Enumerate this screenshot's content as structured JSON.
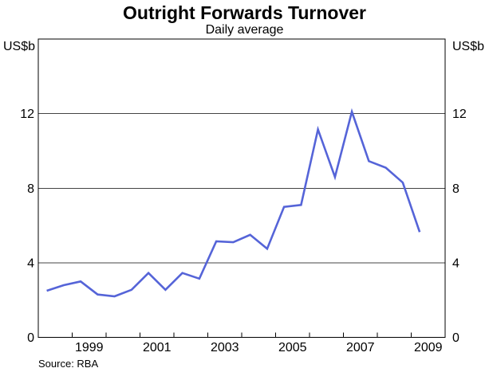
{
  "title": "Outright Forwards Turnover",
  "subtitle": "Daily average",
  "source": "Source: RBA",
  "axes": {
    "left_unit": "US$b",
    "right_unit": "US$b"
  },
  "chart_data": {
    "type": "line",
    "title": "Outright Forwards Turnover",
    "subtitle": "Daily average",
    "ylabel": "US$b",
    "ylim": [
      0,
      16
    ],
    "yticks": [
      0,
      4,
      8,
      12
    ],
    "xlim": [
      1998,
      2010
    ],
    "xtick_step_years": 1,
    "xtick_labels": [
      {
        "label": "1999",
        "x": 1999.5
      },
      {
        "label": "2001",
        "x": 2001.5
      },
      {
        "label": "2003",
        "x": 2003.5
      },
      {
        "label": "2005",
        "x": 2005.5
      },
      {
        "label": "2007",
        "x": 2007.5
      },
      {
        "label": "2009",
        "x": 2009.5
      }
    ],
    "grid": "horizontal",
    "legend": "none",
    "line_color": "#5564d8",
    "grid_color": "#444444",
    "axis_color": "#000000",
    "series": [
      {
        "name": "outright-forwards-daily-average",
        "periods": [
          "1998 H1",
          "1998 H2",
          "1999 H1",
          "1999 H2",
          "2000 H1",
          "2000 H2",
          "2001 H1",
          "2001 H2",
          "2002 H1",
          "2002 H2",
          "2003 H1",
          "2003 H2",
          "2004 H1",
          "2004 H2",
          "2005 H1",
          "2005 H2",
          "2006 H1",
          "2006 H2",
          "2007 H1",
          "2007 H2",
          "2008 H1",
          "2008 H2",
          "2009 H1"
        ],
        "x": [
          1998.25,
          1998.75,
          1999.25,
          1999.75,
          2000.25,
          2000.75,
          2001.25,
          2001.75,
          2002.25,
          2002.75,
          2003.25,
          2003.75,
          2004.25,
          2004.75,
          2005.25,
          2005.75,
          2006.25,
          2006.75,
          2007.25,
          2007.75,
          2008.25,
          2008.75,
          2009.25
        ],
        "values": [
          2.5,
          2.8,
          3.0,
          2.3,
          2.2,
          2.55,
          3.45,
          2.55,
          3.45,
          3.15,
          5.15,
          5.1,
          5.5,
          4.75,
          7.0,
          7.1,
          11.15,
          8.6,
          12.1,
          9.45,
          9.1,
          8.3,
          5.65
        ]
      }
    ],
    "source": "Source: RBA"
  }
}
